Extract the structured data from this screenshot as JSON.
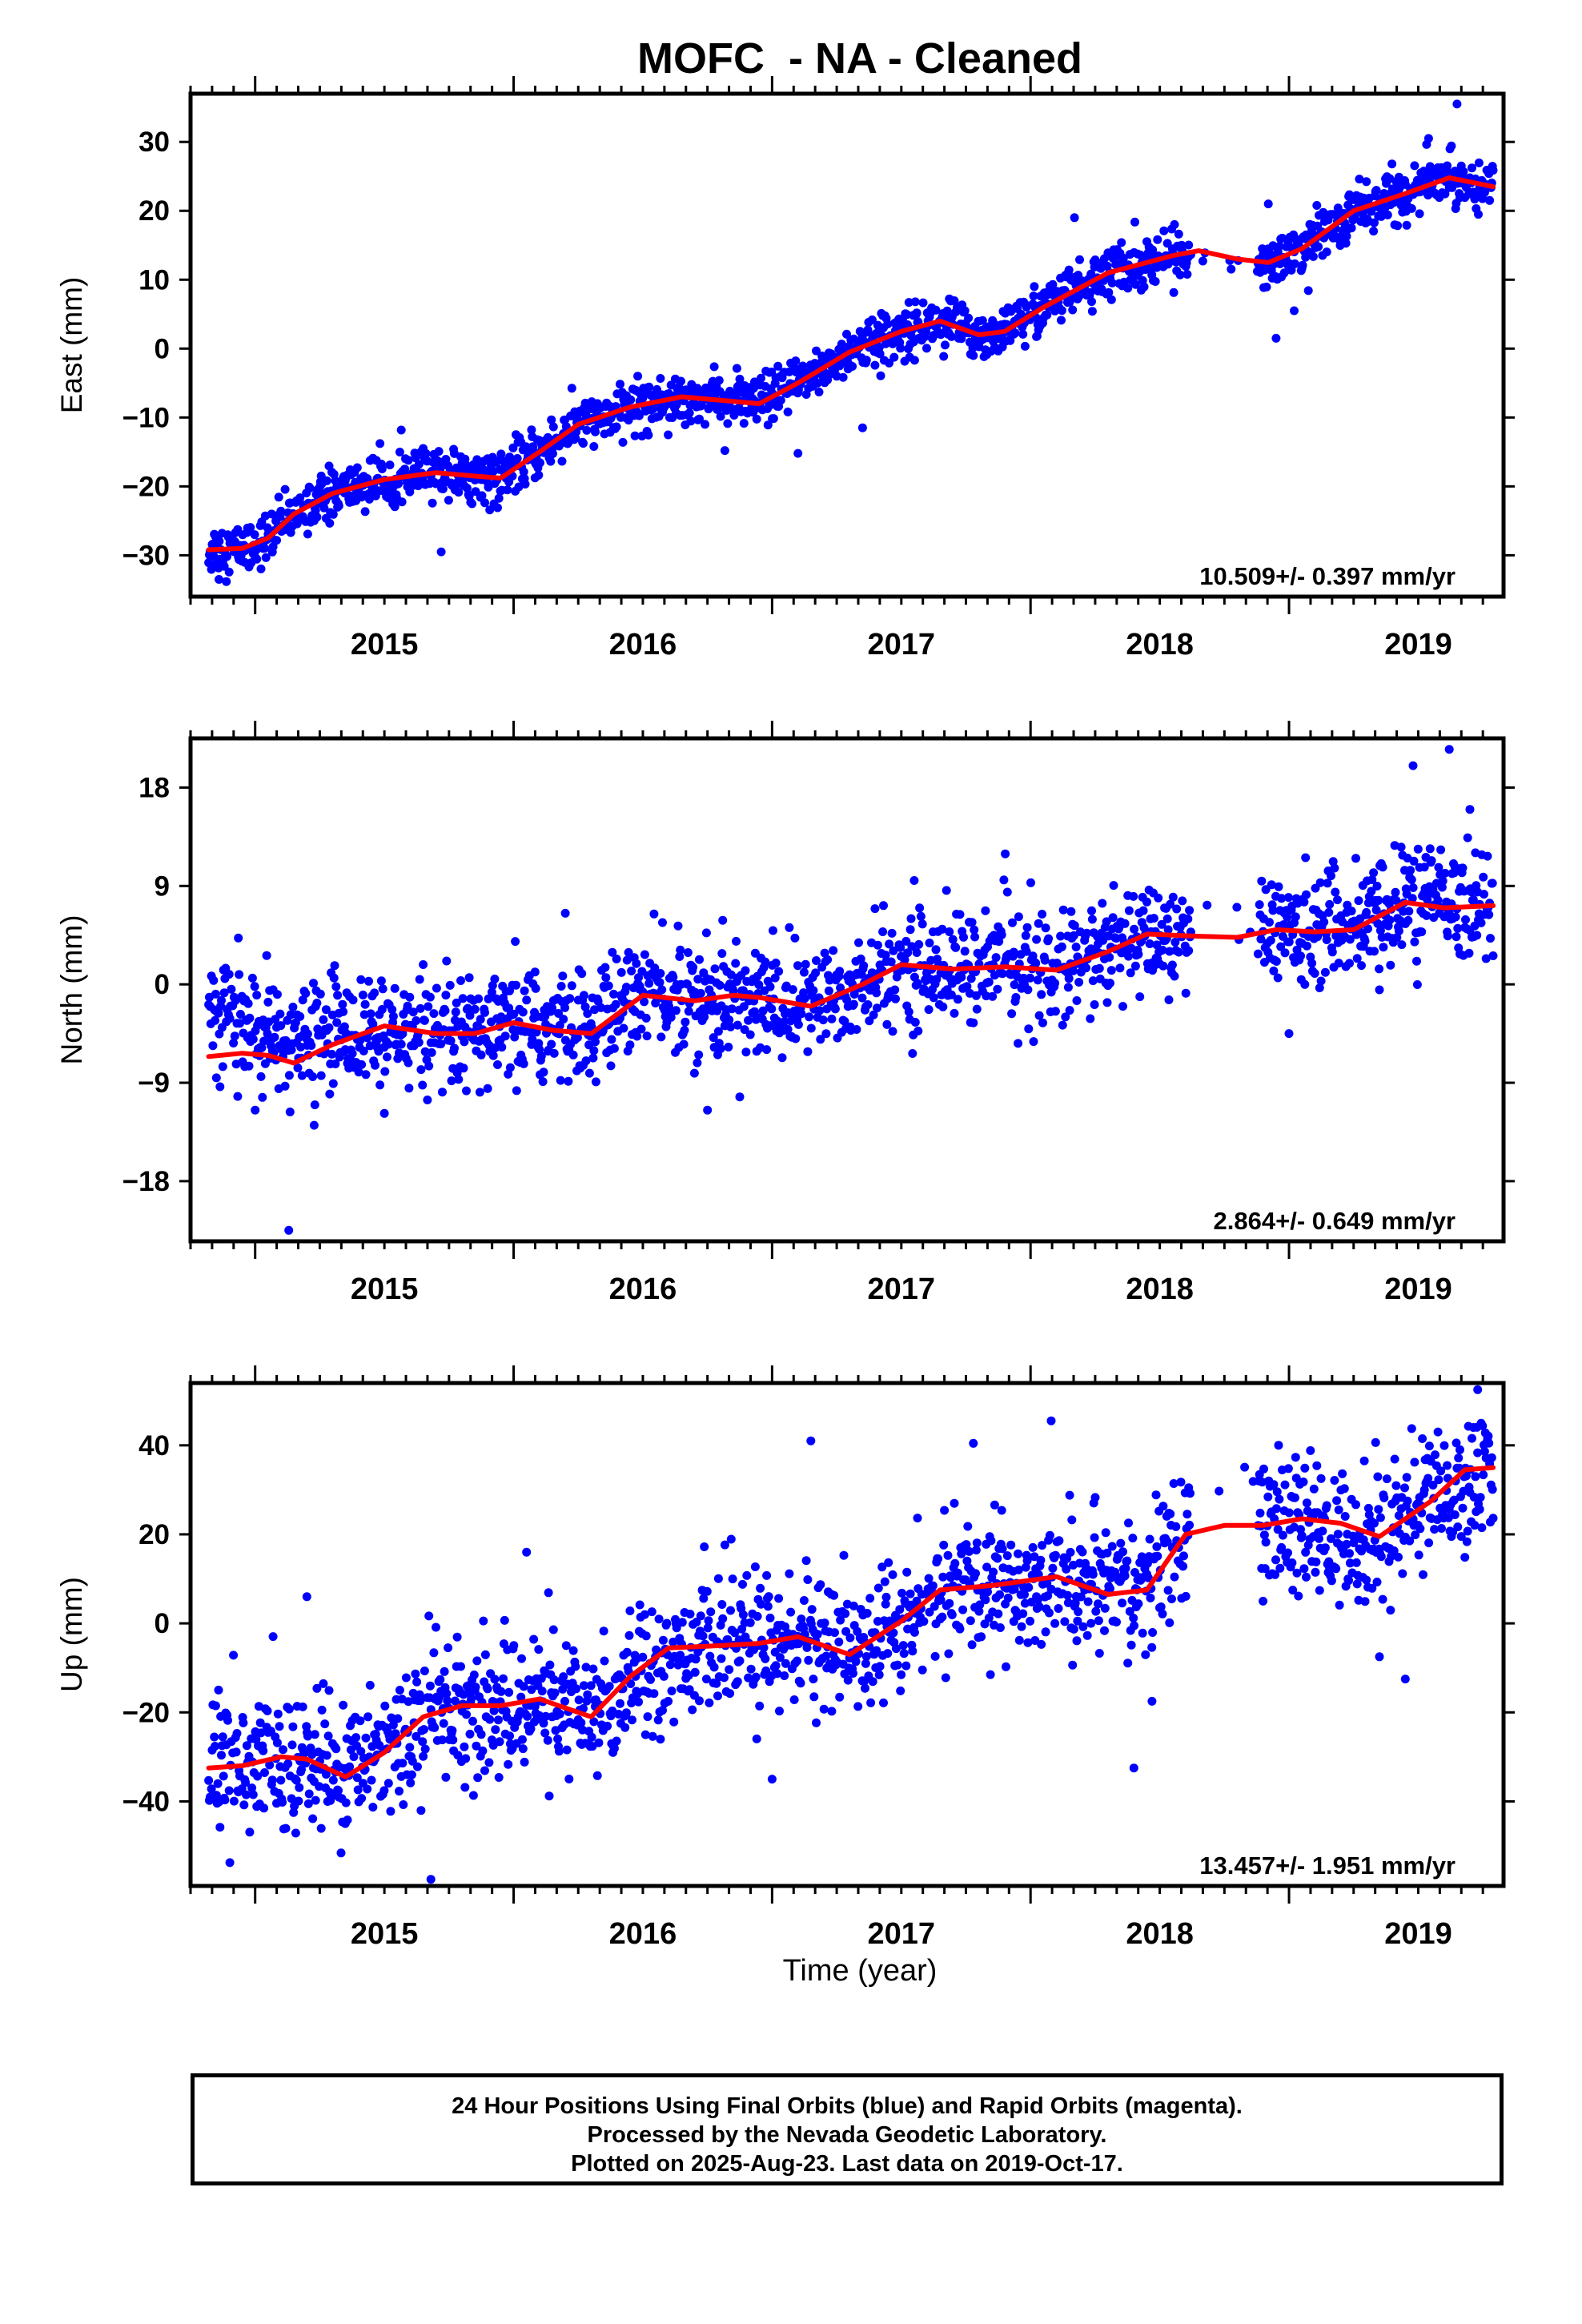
{
  "title": "MOFC  - NA - Cleaned",
  "xlabel": "Time (year)",
  "caption": {
    "line1": "24 Hour Positions Using Final Orbits (blue) and Rapid Orbits (magenta).",
    "line2": "Processed by the Nevada Geodetic Laboratory.",
    "line3": "Plotted on 2025-Aug-23. Last data on 2019-Oct-17."
  },
  "colors": {
    "points": "#0000ff",
    "fit": "#ff0000",
    "frame": "#000000"
  },
  "chart_data": [
    {
      "type": "scatter",
      "title": "MOFC  - NA - Cleaned",
      "ylabel": "East (mm)",
      "xlabel": "",
      "xlim": [
        2014.75,
        2019.83
      ],
      "ylim": [
        -36,
        37
      ],
      "xticks": [
        2015,
        2016,
        2017,
        2018,
        2019
      ],
      "yticks": [
        -30,
        -20,
        -10,
        0,
        10,
        20,
        30
      ],
      "grid": false,
      "rate_label": "10.509+/- 0.397 mm/yr",
      "series": [
        {
          "style": "points",
          "x_start": 2014.82,
          "x_end": 2019.79,
          "trend": [
            [
              2014.82,
              -29.2
            ],
            [
              2014.95,
              -29.0
            ],
            [
              2015.05,
              -27.5
            ],
            [
              2015.15,
              -24.0
            ],
            [
              2015.3,
              -21.0
            ],
            [
              2015.5,
              -19.0
            ],
            [
              2015.7,
              -18.0
            ],
            [
              2015.85,
              -18.5
            ],
            [
              2015.95,
              -18.8
            ],
            [
              2016.1,
              -15.0
            ],
            [
              2016.25,
              -11.0
            ],
            [
              2016.45,
              -8.5
            ],
            [
              2016.65,
              -7.0
            ],
            [
              2016.8,
              -7.5
            ],
            [
              2016.95,
              -8.0
            ],
            [
              2017.1,
              -5.0
            ],
            [
              2017.3,
              -0.5
            ],
            [
              2017.5,
              2.5
            ],
            [
              2017.65,
              4.0
            ],
            [
              2017.8,
              2.0
            ],
            [
              2017.9,
              2.5
            ],
            [
              2018.05,
              6.0
            ],
            [
              2018.3,
              11.0
            ],
            [
              2018.55,
              13.5
            ],
            [
              2018.65,
              14.2
            ],
            [
              2018.8,
              13.0
            ],
            [
              2018.92,
              12.5
            ],
            [
              2019.05,
              14.5
            ],
            [
              2019.25,
              20.0
            ],
            [
              2019.45,
              22.5
            ],
            [
              2019.62,
              24.8
            ],
            [
              2019.79,
              23.5
            ]
          ],
          "gaps": [
            [
              2018.62,
              2018.88
            ]
          ],
          "noise": 1.8,
          "outliers": [
            [
              2014.86,
              -33.5
            ],
            [
              2015.72,
              -29.5
            ],
            [
              2017.1,
              -15.2
            ],
            [
              2017.35,
              -11.5
            ],
            [
              2018.95,
              1.5
            ],
            [
              2019.02,
              5.5
            ],
            [
              2019.65,
              35.5
            ],
            [
              2019.54,
              30.5
            ],
            [
              2018.92,
              21.0
            ],
            [
              2018.17,
              19.0
            ]
          ]
        },
        {
          "style": "line",
          "x": [
            2014.82,
            2014.95,
            2015.05,
            2015.15,
            2015.3,
            2015.5,
            2015.7,
            2015.85,
            2015.95,
            2016.1,
            2016.25,
            2016.45,
            2016.65,
            2016.8,
            2016.95,
            2017.1,
            2017.3,
            2017.5,
            2017.65,
            2017.8,
            2017.9,
            2018.05,
            2018.3,
            2018.55,
            2018.65,
            2018.8,
            2018.92,
            2019.05,
            2019.25,
            2019.45,
            2019.62,
            2019.79
          ],
          "y": [
            -29.2,
            -29.0,
            -27.5,
            -24.0,
            -21.0,
            -19.0,
            -18.0,
            -18.5,
            -18.8,
            -15.0,
            -11.0,
            -8.5,
            -7.0,
            -7.5,
            -8.0,
            -5.0,
            -0.5,
            2.5,
            4.0,
            2.0,
            2.5,
            6.0,
            11.0,
            13.5,
            14.2,
            13.0,
            12.5,
            14.5,
            20.0,
            22.5,
            24.8,
            23.5
          ]
        }
      ]
    },
    {
      "type": "scatter",
      "ylabel": "North (mm)",
      "xlabel": "",
      "xlim": [
        2014.75,
        2019.83
      ],
      "ylim": [
        -23.5,
        22.5
      ],
      "xticks": [
        2015,
        2016,
        2017,
        2018,
        2019
      ],
      "yticks": [
        -18,
        -9,
        0,
        9,
        18
      ],
      "grid": false,
      "rate_label": "2.864+/- 0.649 mm/yr",
      "series": [
        {
          "style": "points",
          "x_start": 2014.82,
          "x_end": 2019.79,
          "trend": [
            [
              2014.82,
              -2.0
            ],
            [
              2014.95,
              -3.5
            ],
            [
              2015.1,
              -6.0
            ],
            [
              2015.3,
              -4.0
            ],
            [
              2015.5,
              -4.5
            ],
            [
              2015.7,
              -5.5
            ],
            [
              2015.9,
              -4.5
            ],
            [
              2016.1,
              -4.0
            ],
            [
              2016.3,
              -4.0
            ],
            [
              2016.5,
              -0.5
            ],
            [
              2016.7,
              -1.5
            ],
            [
              2016.9,
              -1.5
            ],
            [
              2017.1,
              -2.0
            ],
            [
              2017.3,
              -0.5
            ],
            [
              2017.5,
              1.5
            ],
            [
              2017.7,
              1.5
            ],
            [
              2017.9,
              2.0
            ],
            [
              2018.1,
              1.5
            ],
            [
              2018.3,
              3.0
            ],
            [
              2018.5,
              4.5
            ],
            [
              2018.7,
              5.0
            ],
            [
              2018.95,
              5.0
            ],
            [
              2019.1,
              5.5
            ],
            [
              2019.3,
              5.5
            ],
            [
              2019.5,
              8.0
            ],
            [
              2019.79,
              7.0
            ]
          ],
          "gaps": [
            [
              2018.62,
              2018.88
            ]
          ],
          "noise": 2.6,
          "outliers": [
            [
              2015.13,
              -22.5
            ],
            [
              2015.0,
              -11.5
            ],
            [
              2015.5,
              -11.8
            ],
            [
              2016.75,
              -11.5
            ],
            [
              2016.2,
              6.5
            ],
            [
              2017.55,
              9.5
            ],
            [
              2019.0,
              -4.5
            ],
            [
              2019.48,
              20.0
            ],
            [
              2019.62,
              21.5
            ],
            [
              2019.7,
              16.0
            ],
            [
              2019.35,
              -0.5
            ]
          ]
        },
        {
          "style": "line",
          "x": [
            2014.82,
            2014.95,
            2015.05,
            2015.15,
            2015.3,
            2015.5,
            2015.7,
            2015.85,
            2016.0,
            2016.15,
            2016.3,
            2016.5,
            2016.7,
            2016.85,
            2016.95,
            2017.15,
            2017.35,
            2017.5,
            2017.7,
            2017.9,
            2018.1,
            2018.3,
            2018.45,
            2018.65,
            2018.8,
            2018.95,
            2019.1,
            2019.25,
            2019.45,
            2019.6,
            2019.79
          ],
          "y": [
            -6.6,
            -6.3,
            -6.5,
            -7.2,
            -5.5,
            -3.8,
            -4.5,
            -4.5,
            -3.5,
            -4.2,
            -4.5,
            -1.0,
            -1.5,
            -1.0,
            -1.2,
            -2.0,
            0.0,
            1.8,
            1.4,
            1.6,
            1.3,
            3.0,
            4.6,
            4.4,
            4.3,
            5.0,
            4.8,
            5.0,
            7.5,
            7.0,
            7.2
          ]
        }
      ]
    },
    {
      "type": "scatter",
      "ylabel": "Up (mm)",
      "xlabel": "Time (year)",
      "xlim": [
        2014.75,
        2019.83
      ],
      "ylim": [
        -59,
        54
      ],
      "xticks": [
        2015,
        2016,
        2017,
        2018,
        2019
      ],
      "yticks": [
        -40,
        -20,
        0,
        20,
        40
      ],
      "grid": false,
      "rate_label": "13.457+/- 1.951 mm/yr",
      "series": [
        {
          "style": "points",
          "x_start": 2014.82,
          "x_end": 2019.79,
          "trend": [
            [
              2014.82,
              -31.0
            ],
            [
              2015.0,
              -31.0
            ],
            [
              2015.2,
              -32.0
            ],
            [
              2015.35,
              -34.0
            ],
            [
              2015.5,
              -27.0
            ],
            [
              2015.7,
              -18.0
            ],
            [
              2015.9,
              -20.0
            ],
            [
              2016.1,
              -17.0
            ],
            [
              2016.3,
              -22.0
            ],
            [
              2016.5,
              -8.0
            ],
            [
              2016.75,
              -5.0
            ],
            [
              2016.95,
              -5.0
            ],
            [
              2017.1,
              -3.0
            ],
            [
              2017.3,
              -6.0
            ],
            [
              2017.5,
              0.0
            ],
            [
              2017.7,
              8.0
            ],
            [
              2017.95,
              9.0
            ],
            [
              2018.1,
              10.0
            ],
            [
              2018.3,
              7.0
            ],
            [
              2018.45,
              9.0
            ],
            [
              2018.6,
              20.0
            ],
            [
              2018.8,
              22.0
            ],
            [
              2018.95,
              22.0
            ],
            [
              2019.1,
              20.0
            ],
            [
              2019.3,
              18.0
            ],
            [
              2019.5,
              27.0
            ],
            [
              2019.79,
              33.0
            ]
          ],
          "gaps": [
            [
              2018.62,
              2018.88
            ]
          ],
          "noise": 7.5,
          "outliers": [
            [
              2015.68,
              -57.5
            ],
            [
              2015.2,
              6.0
            ],
            [
              2016.05,
              16.0
            ],
            [
              2017.15,
              41.0
            ],
            [
              2018.08,
              45.5
            ],
            [
              2018.4,
              -32.5
            ],
            [
              2017.0,
              -35.0
            ],
            [
              2019.73,
              52.5
            ],
            [
              2019.45,
              -12.5
            ],
            [
              2019.35,
              -7.5
            ],
            [
              2018.47,
              -17.5
            ]
          ]
        },
        {
          "style": "line",
          "x": [
            2014.82,
            2014.95,
            2015.1,
            2015.2,
            2015.35,
            2015.5,
            2015.65,
            2015.8,
            2015.95,
            2016.1,
            2016.3,
            2016.45,
            2016.6,
            2016.8,
            2016.95,
            2017.1,
            2017.3,
            2017.5,
            2017.65,
            2017.85,
            2018.1,
            2018.3,
            2018.45,
            2018.6,
            2018.75,
            2018.9,
            2019.05,
            2019.2,
            2019.35,
            2019.55,
            2019.68,
            2019.79
          ],
          "y": [
            -32.5,
            -32.0,
            -30.0,
            -30.5,
            -34.5,
            -29.0,
            -21.0,
            -18.5,
            -18.5,
            -17.0,
            -21.0,
            -12.0,
            -5.5,
            -5.0,
            -4.5,
            -3.0,
            -7.0,
            0.5,
            7.5,
            8.5,
            10.5,
            6.5,
            7.5,
            20.0,
            22.0,
            22.0,
            23.5,
            22.5,
            19.5,
            27.5,
            34.5,
            35.0
          ]
        }
      ]
    }
  ]
}
